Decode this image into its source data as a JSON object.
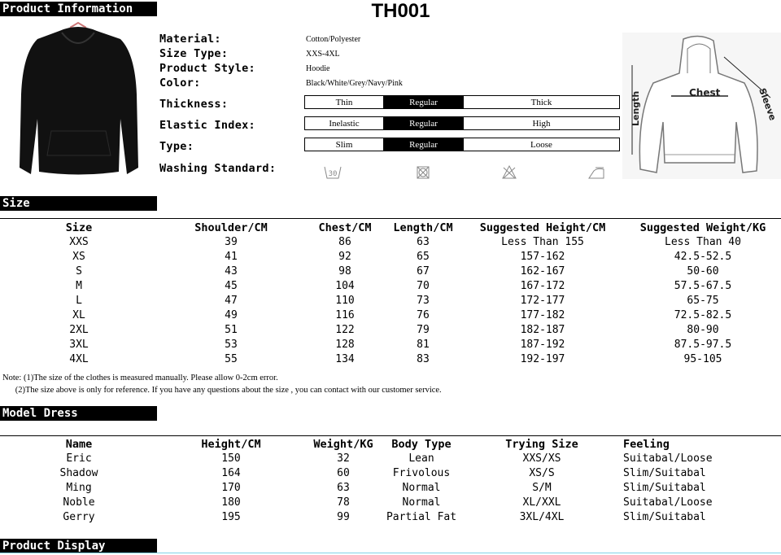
{
  "title": "TH001",
  "sections": {
    "product_info": "Product Information",
    "size": "Size",
    "model_dress": "Model Dress",
    "product_display": "Product Display"
  },
  "info": {
    "material_label": "Material:",
    "material": "Cotton/Polyester",
    "size_type_label": "Size Type:",
    "size_type": "XXS-4XL",
    "style_label": "Product Style:",
    "style": "Hoodie",
    "color_label": "Color:",
    "color": "Black/White/Grey/Navy/Pink",
    "thickness_label": "Thickness:",
    "thickness": [
      "Thin",
      "Regular",
      "Thick"
    ],
    "elastic_label": "Elastic Index:",
    "elastic": [
      "Inelastic",
      "Regular",
      "High"
    ],
    "type_label": "Type:",
    "type": [
      "Slim",
      "Regular",
      "Loose"
    ],
    "selected": "Regular",
    "washing_label": "Washing Standard:",
    "washing_icons": [
      "wash-30-icon",
      "no-tumble-dry-icon",
      "no-bleach-icon",
      "iron-low-icon"
    ],
    "wash_temp": "30"
  },
  "diagram": {
    "chest": "Chest",
    "length": "Length",
    "sleeve": "Sleeve"
  },
  "size_table": {
    "headers": [
      "Size",
      "Shoulder/CM",
      "Chest/CM",
      "Length/CM",
      "Suggested Height/CM",
      "Suggested Weight/KG"
    ],
    "rows": [
      [
        "XXS",
        "39",
        "86",
        "63",
        "Less Than 155",
        "Less Than 40"
      ],
      [
        "XS",
        "41",
        "92",
        "65",
        "157-162",
        "42.5-52.5"
      ],
      [
        "S",
        "43",
        "98",
        "67",
        "162-167",
        "50-60"
      ],
      [
        "M",
        "45",
        "104",
        "70",
        "167-172",
        "57.5-67.5"
      ],
      [
        "L",
        "47",
        "110",
        "73",
        "172-177",
        "65-75"
      ],
      [
        "XL",
        "49",
        "116",
        "76",
        "177-182",
        "72.5-82.5"
      ],
      [
        "2XL",
        "51",
        "122",
        "79",
        "182-187",
        "80-90"
      ],
      [
        "3XL",
        "53",
        "128",
        "81",
        "187-192",
        "87.5-97.5"
      ],
      [
        "4XL",
        "55",
        "134",
        "83",
        "192-197",
        "95-105"
      ]
    ]
  },
  "notes": [
    "Note: (1)The size of the clothes is measured manually. Please allow 0-2cm error.",
    "      (2)The size above is only for reference. If you have any questions about the size , you can contact with our customer service."
  ],
  "model_table": {
    "headers": [
      "Name",
      "Height/CM",
      "Weight/KG",
      "Body Type",
      "Trying Size",
      "Feeling"
    ],
    "rows": [
      [
        "Eric",
        "150",
        "32",
        "Lean",
        "XXS/XS",
        "Suitabal/Loose"
      ],
      [
        "Shadow",
        "164",
        "60",
        "Frivolous",
        "XS/S",
        "Slim/Suitabal"
      ],
      [
        "Ming",
        "170",
        "63",
        "Normal",
        "S/M",
        "Slim/Suitabal"
      ],
      [
        "Noble",
        "180",
        "78",
        "Normal",
        "XL/XXL",
        "Suitabal/Loose"
      ],
      [
        "Gerry",
        "195",
        "99",
        "Partial Fat",
        "3XL/4XL",
        "Slim/Suitabal"
      ]
    ]
  }
}
